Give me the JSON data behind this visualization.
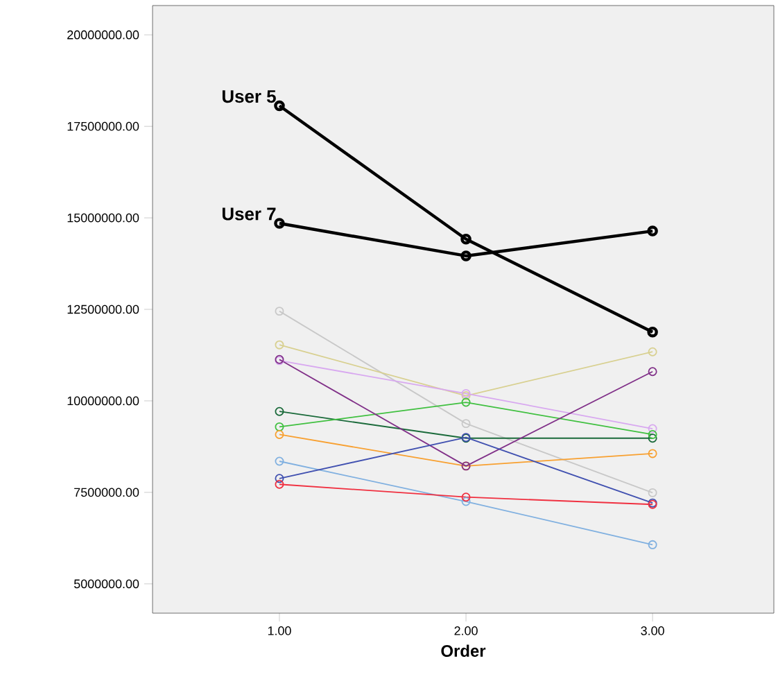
{
  "chart_data": {
    "type": "line",
    "xlabel": "Order",
    "marker": "circle",
    "line_style": "solid",
    "x": [
      1,
      2,
      3
    ],
    "xlim": [
      0.32,
      3.65
    ],
    "ylim": [
      4200000,
      20800000
    ],
    "xticks": [
      {
        "value": 1,
        "label": "1.00"
      },
      {
        "value": 2,
        "label": "2.00"
      },
      {
        "value": 3,
        "label": "3.00"
      }
    ],
    "yticks": [
      {
        "value": 5000000,
        "label": "5000000.00"
      },
      {
        "value": 7500000,
        "label": "7500000.00"
      },
      {
        "value": 10000000,
        "label": "10000000.00"
      },
      {
        "value": 12500000,
        "label": "12500000.00"
      },
      {
        "value": 15000000,
        "label": "15000000.00"
      },
      {
        "value": 17500000,
        "label": "17500000.00"
      },
      {
        "value": 20000000,
        "label": "20000000.00"
      }
    ],
    "series": [
      {
        "color": "#c8c8c8",
        "values": [
          12450000,
          9380000,
          7490000
        ]
      },
      {
        "color": "#d8d090",
        "values": [
          11530000,
          10140000,
          11340000
        ]
      },
      {
        "color": "#d8a8f0",
        "values": [
          11100000,
          10200000,
          9240000
        ]
      },
      {
        "color": "#1a6a3a",
        "values": [
          9710000,
          8980000,
          8980000
        ]
      },
      {
        "color": "#40c040",
        "values": [
          9290000,
          9960000,
          9080000
        ]
      },
      {
        "color": "#f8a030",
        "values": [
          9080000,
          8220000,
          8560000
        ]
      },
      {
        "color": "#803088",
        "values": [
          11130000,
          8220000,
          10800000
        ]
      },
      {
        "color": "#80b0e0",
        "values": [
          8350000,
          7250000,
          6070000
        ]
      },
      {
        "color": "#4050b0",
        "values": [
          7880000,
          9000000,
          7210000
        ]
      },
      {
        "color": "#f03040",
        "values": [
          7720000,
          7370000,
          7170000
        ]
      },
      {
        "name": "User 7",
        "color": "#000000",
        "values": [
          14850000,
          13960000,
          14640000
        ]
      },
      {
        "name": "User 5",
        "color": "#000000",
        "values": [
          18060000,
          14420000,
          11880000
        ]
      }
    ]
  }
}
